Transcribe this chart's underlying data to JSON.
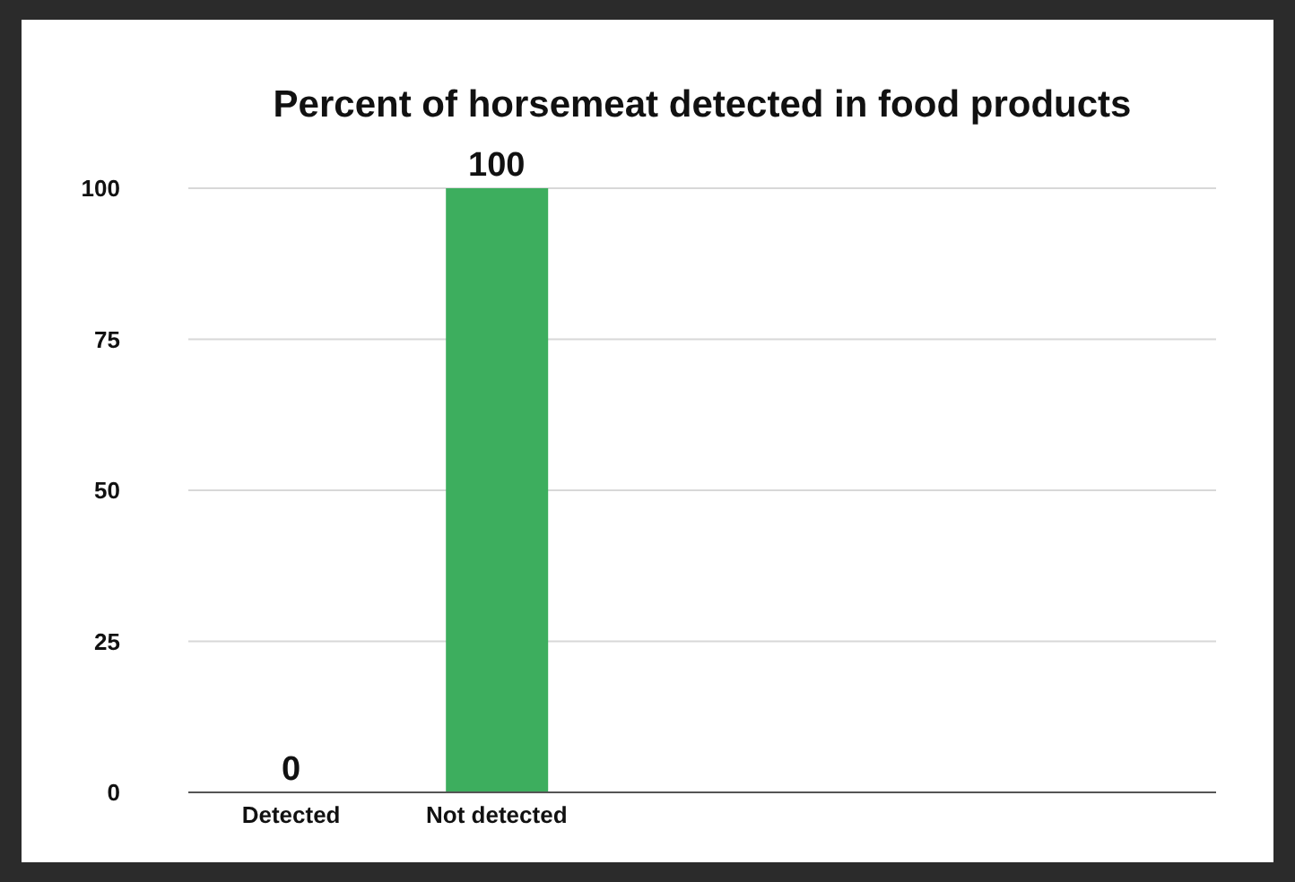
{
  "chart_data": {
    "type": "bar",
    "title": "Percent of horsemeat detected in food products",
    "categories": [
      "Detected",
      "Not detected",
      null,
      null,
      null
    ],
    "values": [
      0,
      100,
      null,
      null,
      null
    ],
    "color": "#3dae5e",
    "ylim": [
      0,
      100
    ],
    "yticks": [
      0,
      25,
      50,
      75,
      100
    ],
    "grid": "y",
    "data_labels": true
  }
}
